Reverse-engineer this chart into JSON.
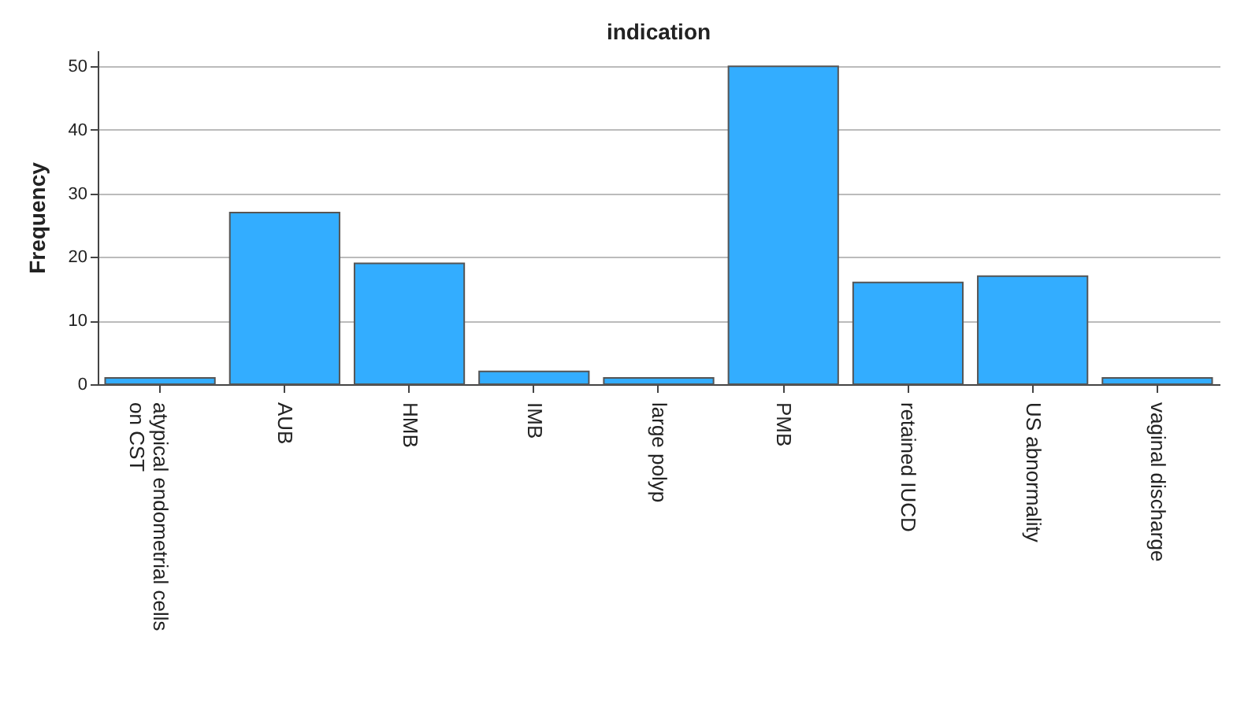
{
  "chart_data": {
    "type": "bar",
    "title": "indication",
    "ylabel": "Frequency",
    "categories": [
      "atypical endometrial cells\non CST",
      "AUB",
      "HMB",
      "IMB",
      "large polyp",
      "PMB",
      "retained IUCD",
      "US abnormality",
      "vaginal discharge"
    ],
    "values": [
      1,
      27,
      19,
      2,
      1,
      50,
      16,
      17,
      1
    ],
    "color": "#33adff",
    "ylim": [
      0,
      52.5
    ],
    "yticks": [
      0,
      10,
      20,
      30,
      40,
      50
    ],
    "grid": "y"
  }
}
